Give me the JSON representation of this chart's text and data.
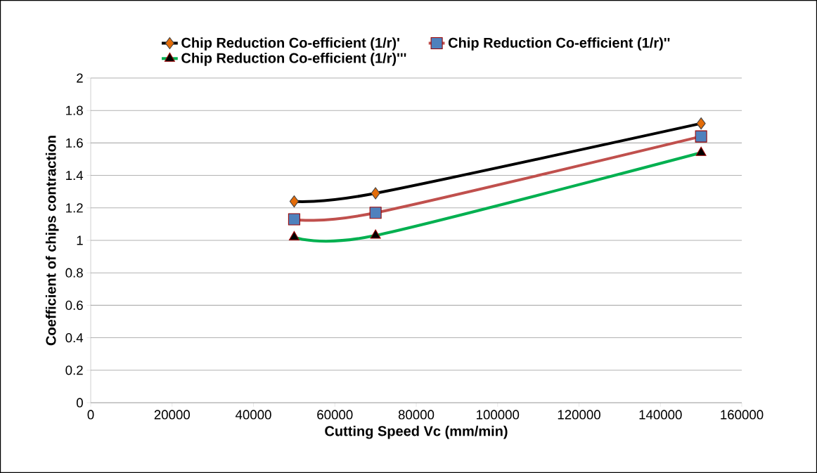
{
  "chart_data": {
    "type": "line",
    "xlabel": "Cutting Speed Vc (mm/min)",
    "ylabel": "Coefficient of chips contraction",
    "x": [
      50000,
      70000,
      150000
    ],
    "series": [
      {
        "name": "Chip Reduction Co-efficient (1/r)'",
        "color": "#000000",
        "marker": "diamond",
        "values": [
          1.24,
          1.29,
          1.72
        ]
      },
      {
        "name": "Chip Reduction Co-efficient (1/r)''",
        "color": "#c0504d",
        "marker": "square",
        "values": [
          1.13,
          1.17,
          1.64
        ]
      },
      {
        "name": "Chip Reduction Co-efficient (1/r)'''",
        "color": "#00b050",
        "marker": "triangle",
        "values": [
          1.02,
          1.03,
          1.54
        ]
      }
    ],
    "xlim": [
      0,
      160000
    ],
    "xticks": [
      0,
      20000,
      40000,
      60000,
      80000,
      100000,
      120000,
      140000,
      160000
    ],
    "ylim": [
      0,
      2
    ],
    "yticks": [
      0,
      0.2,
      0.4,
      0.6,
      0.8,
      1,
      1.2,
      1.4,
      1.6,
      1.8,
      2
    ],
    "grid": "y",
    "legend": "top"
  }
}
